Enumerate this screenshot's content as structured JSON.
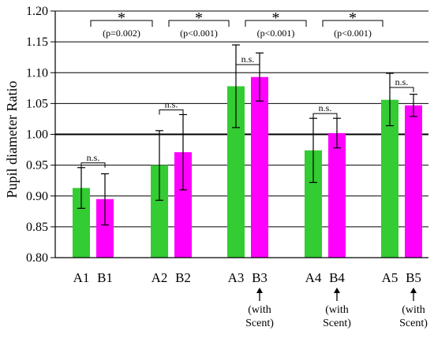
{
  "chart_data": {
    "type": "bar",
    "ylabel": "Pupil diameter Ratio",
    "ylim": [
      0.8,
      1.2
    ],
    "yticks": [
      "0.80",
      "0.85",
      "0.90",
      "0.95",
      "1.00",
      "1.05",
      "1.10",
      "1.15",
      "1.20"
    ],
    "grid": true,
    "colors": {
      "A": "#33cc33",
      "B": "#ff00ff"
    },
    "groups": [
      {
        "bars": [
          {
            "label": "A1",
            "series": "A",
            "value": 0.913,
            "err_low": 0.88,
            "err_high": 0.946
          },
          {
            "label": "B1",
            "series": "B",
            "value": 0.895,
            "err_low": 0.853,
            "err_high": 0.936
          }
        ],
        "pair_sig": "n.s."
      },
      {
        "bars": [
          {
            "label": "A2",
            "series": "A",
            "value": 0.95,
            "err_low": 0.893,
            "err_high": 1.006
          },
          {
            "label": "B2",
            "series": "B",
            "value": 0.971,
            "err_low": 0.91,
            "err_high": 1.032
          }
        ],
        "pair_sig": "n.s."
      },
      {
        "bars": [
          {
            "label": "A3",
            "series": "A",
            "value": 1.078,
            "err_low": 1.011,
            "err_high": 1.145
          },
          {
            "label": "B3",
            "series": "B",
            "value": 1.093,
            "err_low": 1.054,
            "err_high": 1.132
          }
        ],
        "pair_sig": "n.s.",
        "note": [
          "(with",
          "Scent)"
        ]
      },
      {
        "bars": [
          {
            "label": "A4",
            "series": "A",
            "value": 0.974,
            "err_low": 0.922,
            "err_high": 1.026
          },
          {
            "label": "B4",
            "series": "B",
            "value": 1.002,
            "err_low": 0.978,
            "err_high": 1.026
          }
        ],
        "pair_sig": "n.s.",
        "note": [
          "(with",
          "Scent)"
        ]
      },
      {
        "bars": [
          {
            "label": "A5",
            "series": "A",
            "value": 1.056,
            "err_low": 1.014,
            "err_high": 1.099
          },
          {
            "label": "B5",
            "series": "B",
            "value": 1.047,
            "err_low": 1.029,
            "err_high": 1.065
          }
        ],
        "pair_sig": "n.s.",
        "note": [
          "(with",
          "Scent)"
        ]
      }
    ],
    "comparisons": [
      {
        "from": 0,
        "to": 1,
        "star": "*",
        "p": "(p=0.002)"
      },
      {
        "from": 1,
        "to": 2,
        "star": "*",
        "p": "(p<0.001)"
      },
      {
        "from": 2,
        "to": 3,
        "star": "*",
        "p": "(p<0.001)"
      },
      {
        "from": 3,
        "to": 4,
        "star": "*",
        "p": "(p<0.001)"
      }
    ]
  }
}
